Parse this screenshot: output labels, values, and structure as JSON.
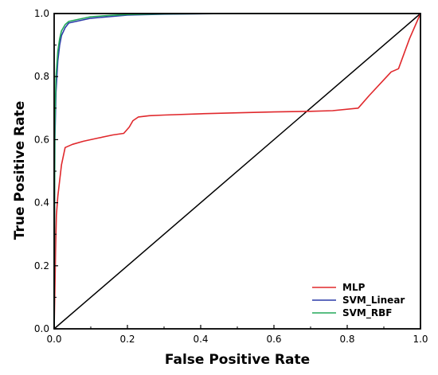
{
  "chart_data": {
    "type": "line",
    "title": "",
    "xlabel": "False Positive Rate",
    "ylabel": "True Positive Rate",
    "xlim": [
      0,
      1
    ],
    "ylim": [
      0,
      1
    ],
    "xticks": [
      "0.0",
      "0.2",
      "0.4",
      "0.6",
      "0.8",
      "1.0"
    ],
    "yticks": [
      "0.0",
      "0.2",
      "0.4",
      "0.6",
      "0.8",
      "1.0"
    ],
    "grid": false,
    "legend_position": "bottom-right",
    "diagonal": {
      "x": [
        0,
        1
      ],
      "y": [
        0,
        1
      ],
      "color": "#000000"
    },
    "series": [
      {
        "name": "MLP",
        "color": "#e0282c",
        "x": [
          0.0,
          0.002,
          0.004,
          0.006,
          0.01,
          0.015,
          0.02,
          0.03,
          0.05,
          0.08,
          0.12,
          0.16,
          0.19,
          0.205,
          0.215,
          0.23,
          0.26,
          0.3,
          0.4,
          0.5,
          0.6,
          0.7,
          0.76,
          0.83,
          0.86,
          0.9,
          0.92,
          0.94,
          0.97,
          1.0
        ],
        "y": [
          0.0,
          0.12,
          0.25,
          0.36,
          0.42,
          0.47,
          0.52,
          0.575,
          0.585,
          0.595,
          0.605,
          0.615,
          0.62,
          0.64,
          0.66,
          0.672,
          0.676,
          0.678,
          0.682,
          0.685,
          0.688,
          0.69,
          0.692,
          0.7,
          0.74,
          0.79,
          0.815,
          0.825,
          0.92,
          1.0
        ]
      },
      {
        "name": "SVM_Linear",
        "color": "#2b3aa8",
        "x": [
          0.0,
          0.002,
          0.005,
          0.01,
          0.015,
          0.02,
          0.03,
          0.04,
          0.06,
          0.1,
          0.15,
          0.2,
          0.3,
          0.5,
          0.8,
          1.0
        ],
        "y": [
          0.0,
          0.6,
          0.75,
          0.85,
          0.9,
          0.93,
          0.955,
          0.97,
          0.975,
          0.985,
          0.99,
          0.995,
          0.998,
          1.0,
          1.0,
          1.0
        ]
      },
      {
        "name": "SVM_RBF",
        "color": "#22a85a",
        "x": [
          0.0,
          0.002,
          0.005,
          0.01,
          0.015,
          0.02,
          0.03,
          0.04,
          0.06,
          0.1,
          0.15,
          0.2,
          0.3,
          0.5,
          0.8,
          1.0
        ],
        "y": [
          0.0,
          0.65,
          0.8,
          0.88,
          0.92,
          0.945,
          0.965,
          0.975,
          0.98,
          0.99,
          0.994,
          0.997,
          0.999,
          1.0,
          1.0,
          1.0
        ]
      }
    ]
  }
}
